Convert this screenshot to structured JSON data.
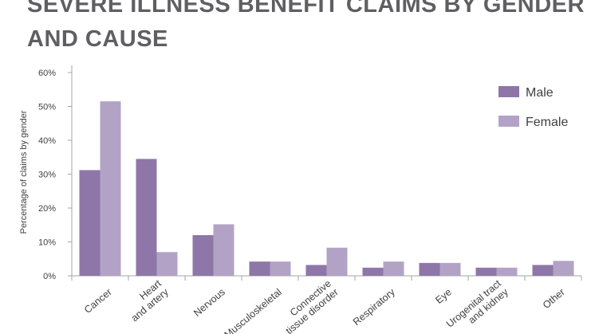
{
  "chart_data": {
    "type": "bar",
    "title_lines": [
      "SEVERE ILLNESS BENEFIT CLAIMS BY GENDER",
      "AND CAUSE"
    ],
    "xlabel": "",
    "ylabel": "Percentage of claims by gender",
    "ylim": [
      0,
      60
    ],
    "yticks": [
      0,
      10,
      20,
      30,
      40,
      50,
      60
    ],
    "ytick_labels": [
      "0%",
      "10%",
      "20%",
      "30%",
      "40%",
      "50%",
      "60%"
    ],
    "categories": [
      [
        "Cancer"
      ],
      [
        "Heart",
        "and artery"
      ],
      [
        "Nervous"
      ],
      [
        "Musculoskeletal"
      ],
      [
        "Connective",
        "tissue disorder"
      ],
      [
        "Respiratory"
      ],
      [
        "Eye"
      ],
      [
        "Urogenital tract",
        "and kidney"
      ],
      [
        "Other"
      ]
    ],
    "series": [
      {
        "name": "Male",
        "color": "#8e77a8",
        "values": [
          31.2,
          34.5,
          12,
          4.2,
          3.2,
          2.4,
          3.8,
          2.4,
          3.2
        ]
      },
      {
        "name": "Female",
        "color": "#b2a3c6",
        "values": [
          51.5,
          7,
          15.2,
          4.2,
          8.3,
          4.2,
          3.8,
          2.4,
          4.4
        ]
      }
    ],
    "legend_position": "top-right",
    "grid": false
  }
}
